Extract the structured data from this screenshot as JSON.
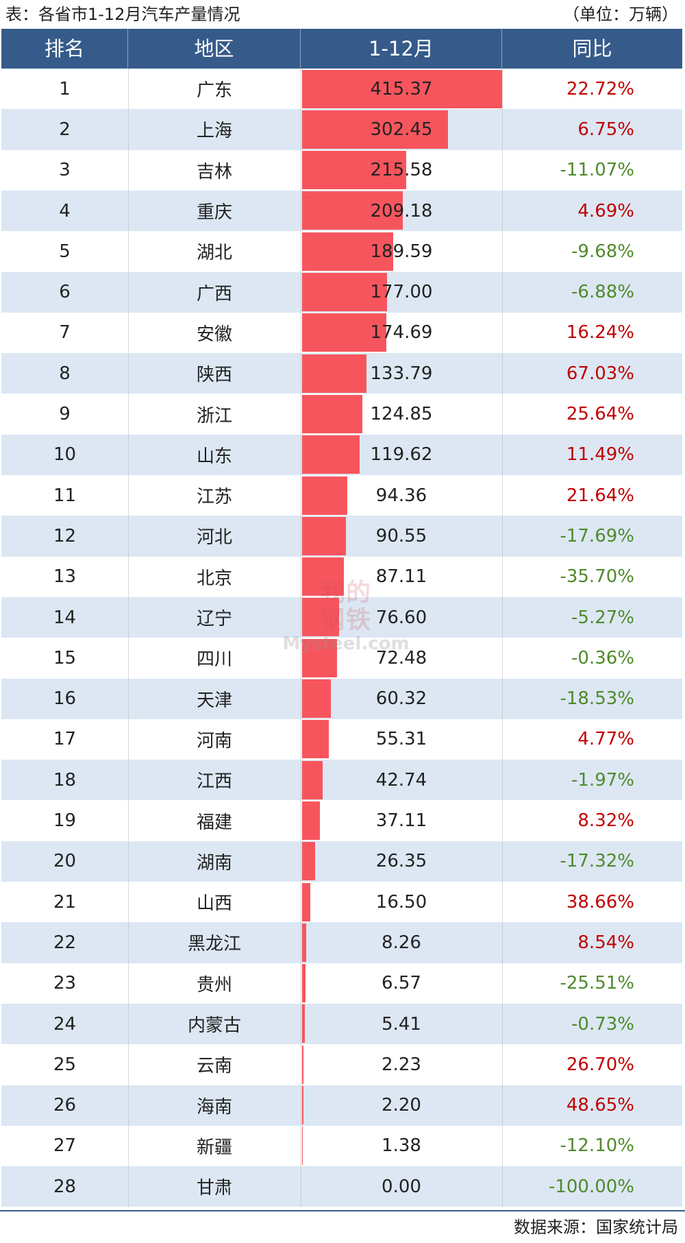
{
  "caption": "表：各省市1-12月汽车产量情况",
  "unit": "（单位：万辆）",
  "headers": {
    "rank": "排名",
    "region": "地区",
    "value": "1-12月",
    "yoy": "同比"
  },
  "source": "数据来源：国家统计局",
  "watermark": {
    "line1": "我的",
    "line2": "钢铁",
    "line3": "Mysteel.com"
  },
  "colors": {
    "header_bg": "#365b8a",
    "bar": "#f7555d",
    "row_alt": "#dce7f3",
    "positive": "#c00000",
    "negative": "#4f8a2b"
  },
  "chart_data": {
    "type": "table",
    "title": "表：各省市1-12月汽车产量情况",
    "unit": "万辆",
    "columns": [
      "排名",
      "地区",
      "1-12月",
      "同比"
    ],
    "bar_column": "1-12月",
    "bar_max": 415.37,
    "rows": [
      {
        "rank": "1",
        "region": "广东",
        "value": 415.37,
        "value_label": "415.37",
        "yoy": "22.72%"
      },
      {
        "rank": "2",
        "region": "上海",
        "value": 302.45,
        "value_label": "302.45",
        "yoy": "6.75%"
      },
      {
        "rank": "3",
        "region": "吉林",
        "value": 215.58,
        "value_label": "215.58",
        "yoy": "-11.07%"
      },
      {
        "rank": "4",
        "region": "重庆",
        "value": 209.18,
        "value_label": "209.18",
        "yoy": "4.69%"
      },
      {
        "rank": "5",
        "region": "湖北",
        "value": 189.59,
        "value_label": "189.59",
        "yoy": "-9.68%"
      },
      {
        "rank": "6",
        "region": "广西",
        "value": 177.0,
        "value_label": "177.00",
        "yoy": "-6.88%"
      },
      {
        "rank": "7",
        "region": "安徽",
        "value": 174.69,
        "value_label": "174.69",
        "yoy": "16.24%"
      },
      {
        "rank": "8",
        "region": "陕西",
        "value": 133.79,
        "value_label": "133.79",
        "yoy": "67.03%"
      },
      {
        "rank": "9",
        "region": "浙江",
        "value": 124.85,
        "value_label": "124.85",
        "yoy": "25.64%"
      },
      {
        "rank": "10",
        "region": "山东",
        "value": 119.62,
        "value_label": "119.62",
        "yoy": "11.49%"
      },
      {
        "rank": "11",
        "region": "江苏",
        "value": 94.36,
        "value_label": "94.36",
        "yoy": "21.64%"
      },
      {
        "rank": "12",
        "region": "河北",
        "value": 90.55,
        "value_label": "90.55",
        "yoy": "-17.69%"
      },
      {
        "rank": "13",
        "region": "北京",
        "value": 87.11,
        "value_label": "87.11",
        "yoy": "-35.70%"
      },
      {
        "rank": "14",
        "region": "辽宁",
        "value": 76.6,
        "value_label": "76.60",
        "yoy": "-5.27%"
      },
      {
        "rank": "15",
        "region": "四川",
        "value": 72.48,
        "value_label": "72.48",
        "yoy": "-0.36%"
      },
      {
        "rank": "16",
        "region": "天津",
        "value": 60.32,
        "value_label": "60.32",
        "yoy": "-18.53%"
      },
      {
        "rank": "17",
        "region": "河南",
        "value": 55.31,
        "value_label": "55.31",
        "yoy": "4.77%"
      },
      {
        "rank": "18",
        "region": "江西",
        "value": 42.74,
        "value_label": "42.74",
        "yoy": "-1.97%"
      },
      {
        "rank": "19",
        "region": "福建",
        "value": 37.11,
        "value_label": "37.11",
        "yoy": "8.32%"
      },
      {
        "rank": "20",
        "region": "湖南",
        "value": 26.35,
        "value_label": "26.35",
        "yoy": "-17.32%"
      },
      {
        "rank": "21",
        "region": "山西",
        "value": 16.5,
        "value_label": "16.50",
        "yoy": "38.66%"
      },
      {
        "rank": "22",
        "region": "黑龙江",
        "value": 8.26,
        "value_label": "8.26",
        "yoy": "8.54%"
      },
      {
        "rank": "23",
        "region": "贵州",
        "value": 6.57,
        "value_label": "6.57",
        "yoy": "-25.51%"
      },
      {
        "rank": "24",
        "region": "内蒙古",
        "value": 5.41,
        "value_label": "5.41",
        "yoy": "-0.73%"
      },
      {
        "rank": "25",
        "region": "云南",
        "value": 2.23,
        "value_label": "2.23",
        "yoy": "26.70%"
      },
      {
        "rank": "26",
        "region": "海南",
        "value": 2.2,
        "value_label": "2.20",
        "yoy": "48.65%"
      },
      {
        "rank": "27",
        "region": "新疆",
        "value": 1.38,
        "value_label": "1.38",
        "yoy": "-12.10%"
      },
      {
        "rank": "28",
        "region": "甘肃",
        "value": 0.0,
        "value_label": "0.00",
        "yoy": "-100.00%"
      }
    ]
  }
}
